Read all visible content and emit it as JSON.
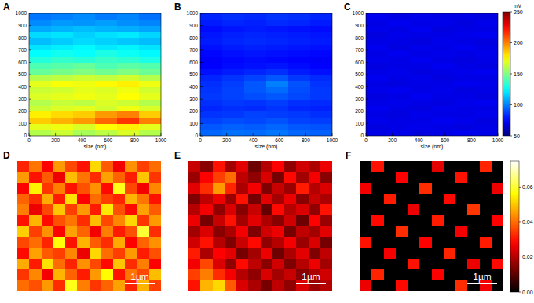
{
  "chart_data": [
    {
      "type": "heatmap",
      "title": "A",
      "xlabel": "size (nm)",
      "xlim": [
        0,
        1000
      ],
      "ylim": [
        0,
        1000
      ],
      "xticks": [
        0,
        200,
        400,
        600,
        800,
        1000
      ],
      "yticks": [
        0,
        100,
        200,
        300,
        400,
        500,
        600,
        700,
        800,
        900,
        1000
      ],
      "color": "jet",
      "cells": [
        [
          160,
          165,
          158,
          162,
          168,
          160
        ],
        [
          170,
          172,
          168,
          175,
          178,
          170
        ],
        [
          185,
          190,
          195,
          205,
          215,
          200
        ],
        [
          178,
          182,
          185,
          195,
          200,
          185
        ],
        [
          165,
          168,
          170,
          166,
          172,
          168
        ],
        [
          160,
          164,
          162,
          168,
          165,
          160
        ],
        [
          168,
          170,
          172,
          170,
          175,
          170
        ],
        [
          165,
          166,
          170,
          168,
          172,
          166
        ],
        [
          170,
          174,
          172,
          176,
          178,
          172
        ],
        [
          160,
          162,
          165,
          163,
          166,
          160
        ],
        [
          145,
          148,
          150,
          147,
          150,
          146
        ],
        [
          140,
          142,
          145,
          140,
          143,
          141
        ],
        [
          132,
          135,
          133,
          136,
          134,
          130
        ],
        [
          125,
          128,
          126,
          130,
          127,
          124
        ],
        [
          120,
          122,
          124,
          121,
          123,
          120
        ],
        [
          112,
          115,
          118,
          116,
          114,
          112
        ],
        [
          118,
          120,
          116,
          119,
          121,
          117
        ],
        [
          108,
          110,
          112,
          110,
          109,
          107
        ],
        [
          102,
          105,
          104,
          106,
          103,
          101
        ],
        [
          98,
          100,
          102,
          99,
          101,
          97
        ]
      ]
    },
    {
      "type": "heatmap",
      "title": "B",
      "xlabel": "size (nm)",
      "xlim": [
        0,
        1000
      ],
      "ylim": [
        0,
        1000
      ],
      "xticks": [
        0,
        200,
        400,
        600,
        800,
        1000
      ],
      "yticks": [
        0,
        100,
        200,
        300,
        400,
        500,
        600,
        700,
        800,
        900,
        1000
      ],
      "color": "jet",
      "cells": [
        [
          95,
          97,
          96,
          98,
          95,
          94
        ],
        [
          92,
          94,
          93,
          95,
          92,
          91
        ],
        [
          88,
          90,
          89,
          91,
          88,
          87
        ],
        [
          85,
          86,
          88,
          87,
          86,
          84
        ],
        [
          82,
          84,
          83,
          85,
          82,
          81
        ],
        [
          84,
          86,
          85,
          87,
          84,
          83
        ],
        [
          86,
          88,
          90,
          92,
          89,
          86
        ],
        [
          85,
          88,
          92,
          96,
          90,
          86
        ],
        [
          84,
          87,
          92,
          100,
          91,
          85
        ],
        [
          82,
          85,
          88,
          92,
          86,
          83
        ],
        [
          78,
          80,
          82,
          84,
          80,
          78
        ],
        [
          75,
          77,
          78,
          79,
          77,
          75
        ],
        [
          74,
          76,
          77,
          76,
          75,
          74
        ],
        [
          76,
          78,
          79,
          78,
          77,
          76
        ],
        [
          78,
          80,
          81,
          80,
          79,
          78
        ],
        [
          80,
          82,
          83,
          82,
          81,
          80
        ],
        [
          79,
          81,
          82,
          81,
          80,
          79
        ],
        [
          77,
          79,
          80,
          79,
          78,
          77
        ],
        [
          80,
          82,
          81,
          83,
          82,
          80
        ],
        [
          82,
          84,
          83,
          85,
          84,
          82
        ]
      ]
    },
    {
      "type": "heatmap",
      "title": "C",
      "xlabel": "size (nm)",
      "xlim": [
        0,
        1000
      ],
      "ylim": [
        0,
        1000
      ],
      "xticks": [
        0,
        200,
        400,
        600,
        800,
        1000
      ],
      "yticks": [
        0,
        100,
        200,
        300,
        400,
        500,
        600,
        700,
        800,
        900,
        1000
      ],
      "color": "jet",
      "colorbar": {
        "range": [
          50,
          250
        ],
        "ticks": [
          50,
          100,
          150,
          200,
          250
        ],
        "label": "mV"
      },
      "cells": [
        [
          70,
          71,
          69,
          70,
          72,
          70
        ],
        [
          69,
          70,
          71,
          70,
          69,
          70
        ],
        [
          71,
          70,
          70,
          72,
          71,
          69
        ],
        [
          70,
          69,
          71,
          70,
          70,
          71
        ],
        [
          72,
          70,
          69,
          71,
          70,
          70
        ],
        [
          70,
          71,
          70,
          69,
          71,
          72
        ],
        [
          69,
          70,
          72,
          70,
          70,
          69
        ],
        [
          71,
          72,
          70,
          71,
          69,
          70
        ],
        [
          70,
          69,
          70,
          70,
          72,
          71
        ],
        [
          72,
          70,
          71,
          69,
          70,
          70
        ],
        [
          70,
          71,
          69,
          70,
          71,
          72
        ],
        [
          69,
          70,
          70,
          72,
          70,
          69
        ],
        [
          71,
          70,
          72,
          70,
          69,
          70
        ],
        [
          70,
          72,
          70,
          71,
          70,
          71
        ],
        [
          72,
          69,
          71,
          70,
          72,
          70
        ],
        [
          70,
          70,
          69,
          71,
          70,
          69
        ],
        [
          69,
          71,
          70,
          70,
          71,
          72
        ],
        [
          71,
          70,
          72,
          69,
          70,
          70
        ],
        [
          70,
          72,
          70,
          71,
          69,
          71
        ],
        [
          72,
          70,
          71,
          70,
          70,
          69
        ]
      ]
    },
    {
      "type": "image",
      "title": "D",
      "scale_bar": "1µm",
      "color": "hot",
      "cells": [
        [
          0.032,
          0.041,
          0.028,
          0.045,
          0.036,
          0.03,
          0.052,
          0.038,
          0.027,
          0.044,
          0.035,
          0.04
        ],
        [
          0.045,
          0.03,
          0.038,
          0.026,
          0.049,
          0.041,
          0.033,
          0.046,
          0.039,
          0.031,
          0.05,
          0.034
        ],
        [
          0.028,
          0.055,
          0.034,
          0.042,
          0.03,
          0.037,
          0.044,
          0.029,
          0.058,
          0.036,
          0.027,
          0.043
        ],
        [
          0.039,
          0.033,
          0.047,
          0.031,
          0.053,
          0.028,
          0.04,
          0.035,
          0.032,
          0.048,
          0.041,
          0.03
        ],
        [
          0.042,
          0.026,
          0.036,
          0.05,
          0.035,
          0.045,
          0.031,
          0.054,
          0.037,
          0.029,
          0.046,
          0.038
        ],
        [
          0.03,
          0.048,
          0.029,
          0.037,
          0.041,
          0.033,
          0.049,
          0.036,
          0.043,
          0.052,
          0.034,
          0.045
        ],
        [
          0.051,
          0.035,
          0.044,
          0.028,
          0.046,
          0.039,
          0.027,
          0.042,
          0.031,
          0.037,
          0.06,
          0.033
        ],
        [
          0.036,
          0.04,
          0.032,
          0.057,
          0.03,
          0.048,
          0.038,
          0.033,
          0.047,
          0.028,
          0.039,
          0.044
        ],
        [
          0.029,
          0.046,
          0.038,
          0.035,
          0.043,
          0.026,
          0.052,
          0.04,
          0.035,
          0.045,
          0.031,
          0.037
        ],
        [
          0.047,
          0.031,
          0.053,
          0.04,
          0.032,
          0.044,
          0.036,
          0.029,
          0.05,
          0.033,
          0.042,
          0.028
        ],
        [
          0.034,
          0.043,
          0.027,
          0.048,
          0.039,
          0.031,
          0.045,
          0.056,
          0.03,
          0.041,
          0.036,
          0.049
        ],
        [
          0.04,
          0.037,
          0.045,
          0.033,
          0.058,
          0.042,
          0.034,
          0.039,
          0.046,
          0.032,
          0.048,
          0.035
        ]
      ]
    },
    {
      "type": "image",
      "title": "E",
      "scale_bar": "1µm",
      "color": "hot",
      "cells": [
        [
          0.022,
          0.015,
          0.03,
          0.018,
          0.025,
          0.012,
          0.02,
          0.028,
          0.016,
          0.023,
          0.019,
          0.026
        ],
        [
          0.017,
          0.028,
          0.035,
          0.04,
          0.021,
          0.016,
          0.024,
          0.013,
          0.029,
          0.018,
          0.027,
          0.015
        ],
        [
          0.025,
          0.033,
          0.045,
          0.032,
          0.019,
          0.027,
          0.014,
          0.022,
          0.017,
          0.031,
          0.02,
          0.024
        ],
        [
          0.014,
          0.021,
          0.026,
          0.017,
          0.03,
          0.013,
          0.025,
          0.018,
          0.026,
          0.015,
          0.022,
          0.019
        ],
        [
          0.02,
          0.027,
          0.016,
          0.024,
          0.015,
          0.022,
          0.011,
          0.029,
          0.02,
          0.024,
          0.016,
          0.03
        ],
        [
          0.026,
          0.013,
          0.022,
          0.03,
          0.018,
          0.025,
          0.019,
          0.015,
          0.023,
          0.012,
          0.028,
          0.017
        ],
        [
          0.018,
          0.024,
          0.015,
          0.019,
          0.027,
          0.014,
          0.023,
          0.026,
          0.013,
          0.021,
          0.018,
          0.025
        ],
        [
          0.023,
          0.03,
          0.02,
          0.014,
          0.022,
          0.029,
          0.016,
          0.02,
          0.027,
          0.017,
          0.024,
          0.013
        ],
        [
          0.031,
          0.019,
          0.028,
          0.025,
          0.013,
          0.018,
          0.026,
          0.012,
          0.019,
          0.025,
          0.014,
          0.021
        ],
        [
          0.027,
          0.036,
          0.024,
          0.016,
          0.029,
          0.021,
          0.015,
          0.023,
          0.014,
          0.02,
          0.026,
          0.018
        ],
        [
          0.035,
          0.042,
          0.033,
          0.027,
          0.02,
          0.016,
          0.024,
          0.018,
          0.022,
          0.015,
          0.019,
          0.023
        ],
        [
          0.03,
          0.048,
          0.052,
          0.038,
          0.024,
          0.019,
          0.013,
          0.021,
          0.016,
          0.024,
          0.017,
          0.02
        ]
      ]
    },
    {
      "type": "image",
      "title": "F",
      "scale_bar": "1µm",
      "color": "hot",
      "colorbar": {
        "range": [
          0,
          0.075
        ],
        "ticks": [
          {
            "value": 0,
            "label": "0.00"
          },
          {
            "value": 0.02,
            "label": "0.02"
          },
          {
            "value": 0.04,
            "label": "0.04"
          },
          {
            "value": 0.06,
            "label": "0.06"
          }
        ]
      },
      "cells": [
        [
          0,
          0.03,
          0,
          0,
          0,
          0,
          0.025,
          0,
          0,
          0,
          0.032,
          0
        ],
        [
          0,
          0,
          0,
          0.028,
          0,
          0,
          0,
          0,
          0.03,
          0,
          0,
          0
        ],
        [
          0.027,
          0,
          0,
          0,
          0,
          0.033,
          0,
          0,
          0,
          0,
          0,
          0.026
        ],
        [
          0,
          0,
          0.031,
          0,
          0,
          0,
          0,
          0.029,
          0,
          0,
          0,
          0
        ],
        [
          0,
          0,
          0,
          0,
          0.026,
          0,
          0,
          0,
          0,
          0.034,
          0,
          0
        ],
        [
          0,
          0.029,
          0,
          0,
          0,
          0,
          0.031,
          0,
          0,
          0,
          0,
          0.028
        ],
        [
          0,
          0,
          0,
          0.033,
          0,
          0,
          0,
          0,
          0.027,
          0,
          0,
          0
        ],
        [
          0.03,
          0,
          0,
          0,
          0,
          0.028,
          0,
          0,
          0,
          0,
          0.031,
          0
        ],
        [
          0,
          0,
          0.027,
          0,
          0,
          0,
          0,
          0.032,
          0,
          0,
          0,
          0
        ],
        [
          0,
          0,
          0,
          0,
          0.03,
          0,
          0,
          0,
          0,
          0.026,
          0,
          0.029
        ],
        [
          0,
          0.032,
          0,
          0,
          0,
          0,
          0.028,
          0,
          0,
          0,
          0,
          0
        ],
        [
          0.026,
          0,
          0,
          0.029,
          0,
          0,
          0,
          0,
          0.033,
          0,
          0.027,
          0
        ]
      ]
    }
  ]
}
